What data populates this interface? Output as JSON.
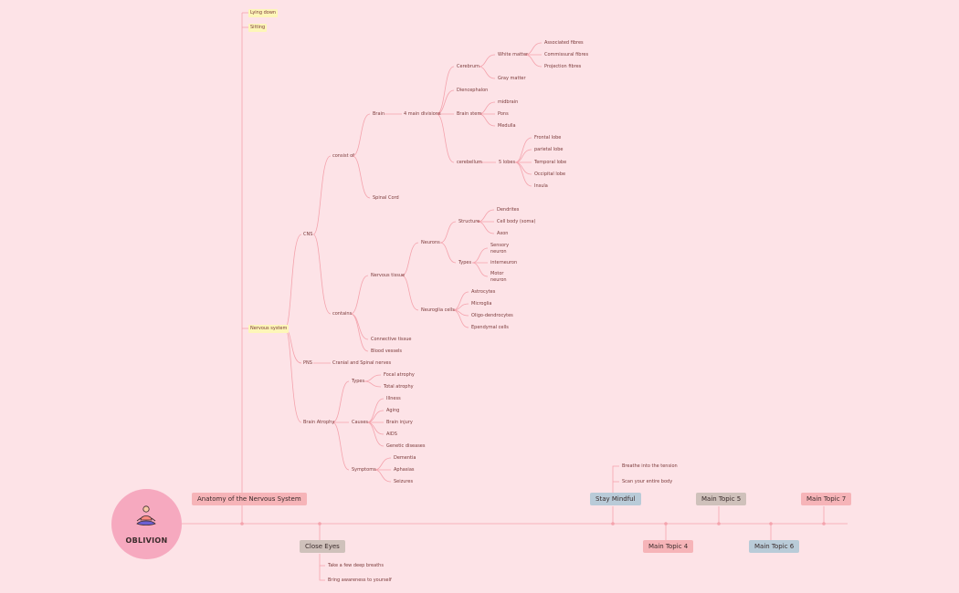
{
  "central": {
    "label": "OBLIVION",
    "icon": "meditating-person-icon"
  },
  "main_topics": {
    "anatomy": "Anatomy of the Nervous System",
    "close_eyes": "Close Eyes",
    "stay_mindful": "Stay Mindful",
    "topic4": "Main Topic 4",
    "topic5": "Main Topic 5",
    "topic6": "Main Topic 6",
    "topic7": "Main Topic 7"
  },
  "anatomy": {
    "lying_down": "Lying down",
    "sitting": "Sitting",
    "nervous_system": "Nervous system",
    "cns": "CNS",
    "consist_of": "consist of",
    "brain": "Brain",
    "main_divisions": "4 main divisions",
    "cerebrum": "Cerebrum",
    "white_matter": "White matter",
    "associated_fibres": "Associated fibres",
    "commissural_fibres": "Commissural fibres",
    "projection_fibres": "Projection fibres",
    "gray_matter": "Gray matter",
    "diencephalon": "Diencephalon",
    "brain_stem": "Brain stem",
    "midbrain": "midbrain",
    "pons": "Pons",
    "medulla": "Medulla",
    "cerebellum": "cerebellum",
    "five_lobes": "5 lobes",
    "frontal_lobe": "Frontal lobe",
    "parietal_lobe": "parietal lobe",
    "temporal_lobe": "Temporal lobe",
    "occipital_lobe": "Occipital lobe",
    "insula": "Insula",
    "spinal_cord": "Spinal Cord",
    "contains": "contains",
    "nervous_tissue": "Nervous tissue",
    "neurons": "Neurons",
    "structure": "Structure",
    "dendrites": "Dendrites",
    "cell_body": "Cell body (soma)",
    "axon": "Axon",
    "types": "Types",
    "sensory_neuron": "Sensory neuron",
    "interneuron": "interneuron",
    "motor_neuron": "Motor neuron",
    "neuroglia_cells": "Neuroglia cells",
    "astrocytes": "Astrocytes",
    "microglia": "Microglia",
    "oligo": "Oligo-dendrocytes",
    "ependymal": "Ependymal cells",
    "connective_tissue": "Connective tissue",
    "blood_vessels": "Blood vessels",
    "pns": "PNS",
    "cranial_spinal": "Cranial and Spinal nerves",
    "brain_atrophy": "Brain Atrophy",
    "atrophy_types": "Types",
    "focal_atrophy": "Focal atrophy",
    "total_atrophy": "Total atrophy",
    "causes": "Causes",
    "illness": "Illness",
    "aging": "Aging",
    "brain_injury": "Brain injury",
    "aids": "AIDS",
    "genetic": "Genetic diseases",
    "symptoms": "Symptoms",
    "dementia": "Dementia",
    "aphasias": "Aphasias",
    "seizures": "Seizures"
  },
  "close_eyes": {
    "breaths": "Take a few deep breaths",
    "awareness": "Bring awareness to yourself"
  },
  "stay_mindful": {
    "tension": "Breathe into the tension",
    "scan": "Scan your entire body"
  },
  "colors": {
    "background": "#fde3e7",
    "line": "#f4a3ad",
    "pink": "#f6b4b8",
    "blue": "#b9cbd8",
    "gray": "#cfc1bb"
  }
}
